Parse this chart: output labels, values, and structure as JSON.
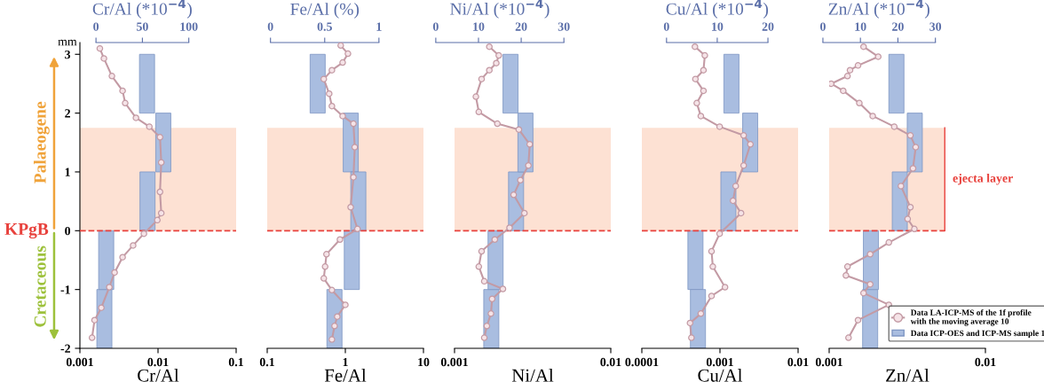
{
  "chart_data": [
    {
      "type": "bar",
      "xlabel": "Cr/Al",
      "x2label": "Cr/Al (*10$^{−4}$)",
      "ylabel": "mm",
      "log": "x",
      "xlim": [
        0.001,
        0.1
      ],
      "xticks": [
        0.001,
        0.01,
        0.1
      ],
      "x2lim": [
        0,
        100
      ],
      "x2ticks": [
        0,
        50,
        100
      ],
      "ylim": [
        -2,
        3.2
      ],
      "yticks": [
        -2,
        -1,
        0,
        1,
        2,
        3
      ],
      "marker": "circle",
      "bands": [
        {
          "axis": "y",
          "from": 0,
          "to": 1.75,
          "color": "#fde1d3"
        }
      ],
      "ref_lines": [
        {
          "axis": "y",
          "value": 0,
          "label": "KPgB",
          "color": "#e8413c",
          "line_style": "dashed"
        }
      ],
      "annotations": [
        "Palaeogene",
        "Cretaceous"
      ],
      "series": [
        {
          "axis": "x2",
          "color": "#a9bde0",
          "x": [
            9,
            11,
            55,
            55.5,
            72.5
          ],
          "base": [
            -2,
            -1,
            2,
            0,
            1
          ],
          "values": [
            1,
            1,
            1,
            1,
            1
          ]
        },
        {
          "type": "line",
          "color": "#c39aa4",
          "x": [
            0.0018,
            0.00203,
            0.00257,
            0.00352,
            0.0038,
            0.00522,
            0.00774,
            0.0106,
            0.011,
            0.0106,
            0.011,
            0.0098,
            0.0066,
            0.0048,
            0.00352,
            0.00278,
            0.00238,
            0.00188,
            0.00154,
            0.00143
          ],
          "values": [
            3.1,
            2.93,
            2.63,
            2.38,
            2.17,
            1.92,
            1.77,
            1.59,
            1.16,
            0.66,
            0.3,
            0.18,
            -0.05,
            -0.25,
            -0.45,
            -0.71,
            -0.96,
            -1.31,
            -1.52,
            -1.82
          ]
        }
      ]
    },
    {
      "type": "bar",
      "xlabel": "Fe/Al",
      "x2label": "Fe/Al (%)",
      "log": "x",
      "xlim": [
        0.1,
        10
      ],
      "xticks": [
        0.1,
        1,
        10
      ],
      "x2lim": [
        0,
        1
      ],
      "x2ticks": [
        0,
        0.5,
        1
      ],
      "ylim": [
        -2,
        3.2
      ],
      "tick_labels": "x",
      "marker": "circle",
      "bands": [
        {
          "axis": "y",
          "from": 0,
          "to": 1.75,
          "color": "#fde1d3"
        }
      ],
      "ref_lines": [
        {
          "axis": "y",
          "value": 0,
          "color": "#e8413c",
          "line_style": "dashed"
        }
      ],
      "series": [
        {
          "axis": "x2",
          "color": "#a9bde0",
          "x": [
            0.435,
            0.59,
            0.74,
            0.75,
            0.81
          ],
          "base": [
            2,
            -2,
            1,
            -1,
            0
          ],
          "values": [
            1,
            1,
            1,
            1,
            1
          ]
        },
        {
          "type": "line",
          "color": "#c39aa4",
          "x": [
            0.873,
            1.08,
            0.924,
            0.673,
            0.53,
            0.621,
            0.673,
            0.924,
            1.27,
            1.32,
            1.27,
            1.17,
            1.43,
            0.853,
            0.574,
            0.551,
            0.53,
            0.673,
            1.0,
            0.788,
            0.728,
            0.673
          ],
          "values": [
            3.15,
            3.01,
            2.86,
            2.73,
            2.58,
            2.33,
            2.12,
            1.95,
            1.82,
            1.42,
            0.91,
            0.4,
            0.03,
            -0.15,
            -0.4,
            -0.61,
            -0.81,
            -1.01,
            -1.26,
            -1.46,
            -1.62,
            -1.85
          ]
        }
      ]
    },
    {
      "type": "bar",
      "xlabel": "Ni/Al",
      "x2label": "Ni/Al (*10$^{−4}$)",
      "log": "x",
      "xlim": [
        0.001,
        0.01
      ],
      "xticks": [
        0.001,
        0.01
      ],
      "x2lim": [
        0,
        30
      ],
      "x2ticks": [
        0,
        10,
        20,
        30
      ],
      "ylim": [
        -2,
        3.2
      ],
      "tick_labels": "x",
      "marker": "circle",
      "bands": [
        {
          "axis": "y",
          "from": 0,
          "to": 1.75,
          "color": "#fde1d3"
        }
      ],
      "ref_lines": [
        {
          "axis": "y",
          "value": 0,
          "color": "#e8413c",
          "line_style": "dashed"
        }
      ],
      "series": [
        {
          "axis": "x2",
          "color": "#a9bde0",
          "x": [
            13,
            14,
            17.5,
            18.8,
            21
          ],
          "base": [
            -2,
            -1,
            2,
            0,
            1
          ],
          "values": [
            1,
            1,
            1,
            1,
            1
          ]
        },
        {
          "type": "line",
          "color": "#c39aa4",
          "x": [
            0.00167,
            0.00192,
            0.00185,
            0.00167,
            0.00149,
            0.00137,
            0.00143,
            0.00188,
            0.00258,
            0.00303,
            0.00297,
            0.00264,
            0.00239,
            0.0028,
            0.00225,
            0.00181,
            0.00149,
            0.00143,
            0.00155,
            0.00204,
            0.00174,
            0.00171,
            0.00161,
            0.00155
          ],
          "values": [
            3.13,
            2.98,
            2.85,
            2.73,
            2.58,
            2.28,
            2.02,
            1.82,
            1.72,
            1.47,
            1.11,
            0.86,
            0.61,
            0.3,
            0.05,
            -0.15,
            -0.35,
            -0.61,
            -0.86,
            -0.99,
            -1.16,
            -1.41,
            -1.62,
            -1.82
          ]
        }
      ]
    },
    {
      "type": "bar",
      "xlabel": "Cu/Al",
      "x2label": "Cu/Al (*10$^{−4}$)",
      "log": "x",
      "xlim": [
        0.0001,
        0.01
      ],
      "xticks": [
        0.0001,
        0.001,
        0.01
      ],
      "x2lim": [
        0,
        20
      ],
      "x2ticks": [
        0,
        10,
        20
      ],
      "ylim": [
        -2,
        3.2
      ],
      "tick_labels": "x",
      "marker": "circle",
      "bands": [
        {
          "axis": "y",
          "from": 0,
          "to": 1.75,
          "color": "#fde1d3"
        }
      ],
      "ref_lines": [
        {
          "axis": "y",
          "value": 0,
          "color": "#e8413c",
          "line_style": "dashed"
        }
      ],
      "series": [
        {
          "axis": "x2",
          "color": "#a9bde0",
          "x": [
            5.7,
            6.2,
            12.2,
            12.8,
            16.5
          ],
          "base": [
            -1,
            -2,
            0,
            2,
            1
          ],
          "values": [
            1,
            1,
            1,
            1,
            1
          ]
        },
        {
          "type": "line",
          "color": "#c39aa4",
          "x": [
            0.000478,
            0.00064,
            0.000615,
            0.000485,
            0.000615,
            0.000505,
            0.000569,
            0.00099,
            0.00201,
            0.00245,
            0.00201,
            0.00159,
            0.00147,
            0.00186,
            0.00099,
            0.00078,
            0.00081,
            0.00116,
            0.00078,
            0.000569,
            0.000414,
            0.000431
          ],
          "values": [
            3.13,
            2.98,
            2.73,
            2.58,
            2.38,
            2.17,
            1.95,
            1.77,
            1.62,
            1.47,
            1.11,
            0.76,
            0.51,
            0.3,
            -0.05,
            -0.35,
            -0.61,
            -0.96,
            -1.11,
            -1.41,
            -1.57,
            -1.82
          ]
        }
      ]
    },
    {
      "type": "bar",
      "xlabel": "Zn/Al",
      "x2label": "Zn/Al (*10$^{−4}$)",
      "log": "x",
      "xlim": [
        0.001,
        0.01
      ],
      "xticks": [
        0.001,
        0.01
      ],
      "x2lim": [
        0,
        30
      ],
      "x2ticks": [
        0,
        10,
        20,
        30
      ],
      "ylim": [
        -2,
        3.2
      ],
      "tick_labels": "x",
      "marker": "circle",
      "legend": "bottom right",
      "bands": [
        {
          "axis": "y",
          "from": 0,
          "to": 1.75,
          "color": "#fde1d3",
          "label": "ejecta layer"
        }
      ],
      "ref_lines": [
        {
          "axis": "y",
          "value": 0,
          "color": "#e8413c",
          "line_style": "dashed"
        }
      ],
      "series": [
        {
          "axis": "x2",
          "name": "Data ICP-OES and ICP-MS sample 1",
          "color": "#a9bde0",
          "x": [
            12.6,
            12.8,
            19.6,
            20.5,
            24.5
          ],
          "base": [
            -2,
            -1,
            2,
            0,
            1
          ],
          "values": [
            1,
            1,
            1,
            1,
            1
          ]
        },
        {
          "type": "line",
          "name": "Data LA-ICP-MS of the 1f profile\nwith the moving average 10",
          "color": "#c39aa4",
          "x": [
            0.00166,
            0.00206,
            0.00153,
            0.00136,
            0.00131,
            0.00103,
            0.00123,
            0.00156,
            0.0019,
            0.00261,
            0.00331,
            0.00358,
            0.00344,
            0.00288,
            0.00331,
            0.00318,
            0.00351,
            0.00241,
            0.00183,
            0.00131,
            0.00128,
            0.00183,
            0.00166,
            0.00241,
            0.00153,
            0.00133
          ],
          "values": [
            3.13,
            2.96,
            2.81,
            2.73,
            2.63,
            2.5,
            2.38,
            2.17,
            1.95,
            1.77,
            1.62,
            1.42,
            1.06,
            0.76,
            0.4,
            0.2,
            0.03,
            -0.2,
            -0.4,
            -0.61,
            -0.76,
            -0.91,
            -1.06,
            -1.26,
            -1.52,
            -1.82
          ]
        }
      ]
    }
  ]
}
